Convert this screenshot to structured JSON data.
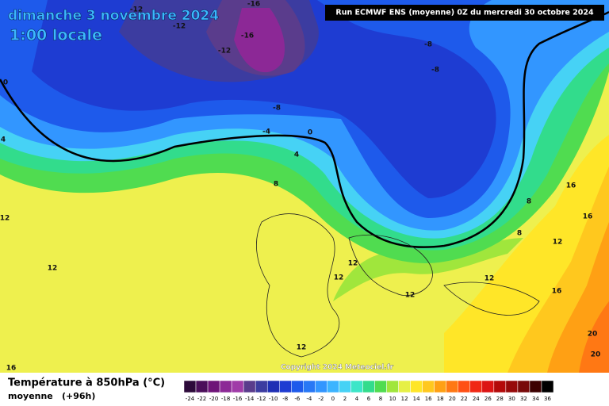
{
  "header": {
    "date": "dimanche 3 novembre 2024",
    "time": "1:00 locale",
    "run": "Run ECMWF ENS (moyenne) 0Z du mercredi 30 octobre 2024"
  },
  "map": {
    "contour_labels": [
      "-12",
      "-12",
      "-16",
      "-16",
      "-12",
      "-8",
      "-8",
      "-8",
      "-4",
      "0",
      "0",
      "4",
      "4",
      "8",
      "16",
      "8",
      "16",
      "8",
      "12",
      "12",
      "12",
      "12",
      "12",
      "12",
      "16",
      "12",
      "20",
      "20",
      "12",
      "16"
    ],
    "copyright": "Copyright 2024 Meteociel.fr"
  },
  "footer": {
    "title": "Température à 850hPa (°C)",
    "subtitle": "moyenne",
    "step": "(+96h)"
  },
  "colorbar": {
    "labels": [
      -24,
      -22,
      -20,
      -18,
      -16,
      -14,
      -12,
      -10,
      -8,
      -6,
      -4,
      -2,
      0,
      2,
      4,
      6,
      8,
      10,
      12,
      14,
      16,
      18,
      20,
      22,
      24,
      26,
      28,
      30,
      32,
      34,
      36
    ],
    "colors": [
      "#2d0a3a",
      "#4b0f5a",
      "#6e1478",
      "#8c2896",
      "#a03ca8",
      "#5a3c8c",
      "#3c3ca0",
      "#1e2fb4",
      "#1e3cd2",
      "#1e5aeb",
      "#2878f5",
      "#3296ff",
      "#3cb4ff",
      "#46d2f5",
      "#3ce6c8",
      "#32dc8c",
      "#50dc50",
      "#a0e63c",
      "#e6f046",
      "#ffe628",
      "#ffc81e",
      "#ffa014",
      "#ff7814",
      "#ff5014",
      "#f02814",
      "#dc1414",
      "#b40a0a",
      "#960a0a",
      "#780a0a",
      "#3c0000",
      "#000000"
    ]
  }
}
